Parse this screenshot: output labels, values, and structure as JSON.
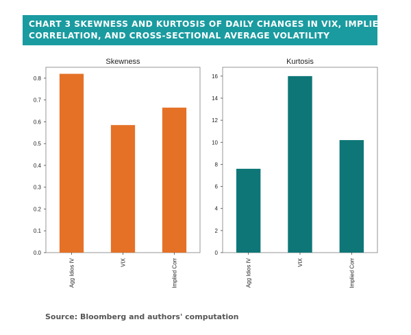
{
  "header": {
    "line1": "CHART 3   SKEWNESS AND KURTOSIS OF DAILY CHANGES IN VIX, IMPLIED",
    "line2": "CORRELATION, AND CROSS-SECTIONAL AVERAGE VOLATILITY"
  },
  "source": "Source: Bloomberg and authors' computation",
  "colors": {
    "header_bg": "#1a9ba0",
    "skewness_bar": "#e57126",
    "kurtosis_bar": "#0e7677"
  },
  "chart_data": [
    {
      "type": "bar",
      "title": "Skewness",
      "categories": [
        "Agg Idios IV",
        "VIX",
        "Implied Corr"
      ],
      "values": [
        0.82,
        0.585,
        0.665
      ],
      "ylim": [
        0,
        0.85
      ],
      "yticks": [
        "0.0",
        "0.1",
        "0.2",
        "0.3",
        "0.4",
        "0.5",
        "0.6",
        "0.7",
        "0.8"
      ],
      "xlabel": "",
      "ylabel": "",
      "color": "#e57126"
    },
    {
      "type": "bar",
      "title": "Kurtosis",
      "categories": [
        "Agg Idios IV",
        "VIX",
        "Implied Corr"
      ],
      "values": [
        7.6,
        16.0,
        10.2
      ],
      "ylim": [
        0,
        16.8
      ],
      "yticks": [
        "0",
        "2",
        "4",
        "6",
        "8",
        "10",
        "12",
        "14",
        "16"
      ],
      "xlabel": "",
      "ylabel": "",
      "color": "#0e7677"
    }
  ]
}
